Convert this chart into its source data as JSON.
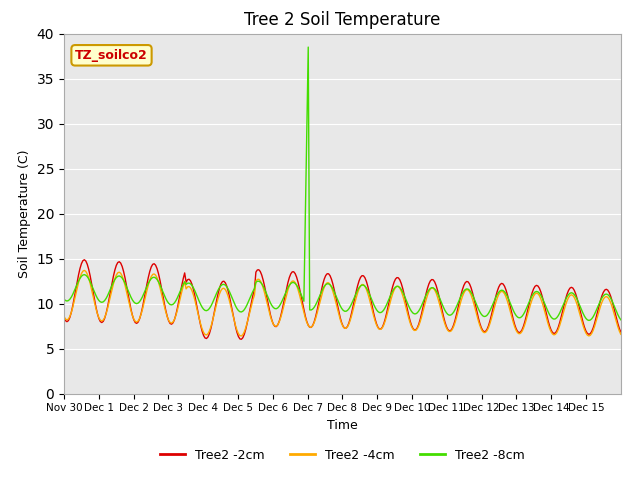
{
  "title": "Tree 2 Soil Temperature",
  "ylabel": "Soil Temperature (C)",
  "xlabel": "Time",
  "annotation_text": "TZ_soilco2",
  "annotation_color": "#cc0000",
  "annotation_bg": "#ffffcc",
  "annotation_border": "#cc9900",
  "legend_labels": [
    "Tree2 -2cm",
    "Tree2 -4cm",
    "Tree2 -8cm"
  ],
  "line_colors": [
    "#dd0000",
    "#ffaa00",
    "#44dd00"
  ],
  "ylim": [
    0,
    40
  ],
  "background_color": "#e8e8e8",
  "grid_color": "#ffffff",
  "xtick_labels": [
    "Nov 30",
    "Dec 1",
    "Dec 2",
    "Dec 3",
    "Dec 4",
    "Dec 5",
    "Dec 6",
    "Dec 7",
    "Dec 8",
    "Dec 9",
    "Dec 10",
    "Dec 11",
    "Dec 12",
    "Dec 13",
    "Dec 14",
    "Dec 15"
  ],
  "ytick_vals": [
    0,
    5,
    10,
    15,
    20,
    25,
    30,
    35,
    40
  ],
  "num_days": 16
}
